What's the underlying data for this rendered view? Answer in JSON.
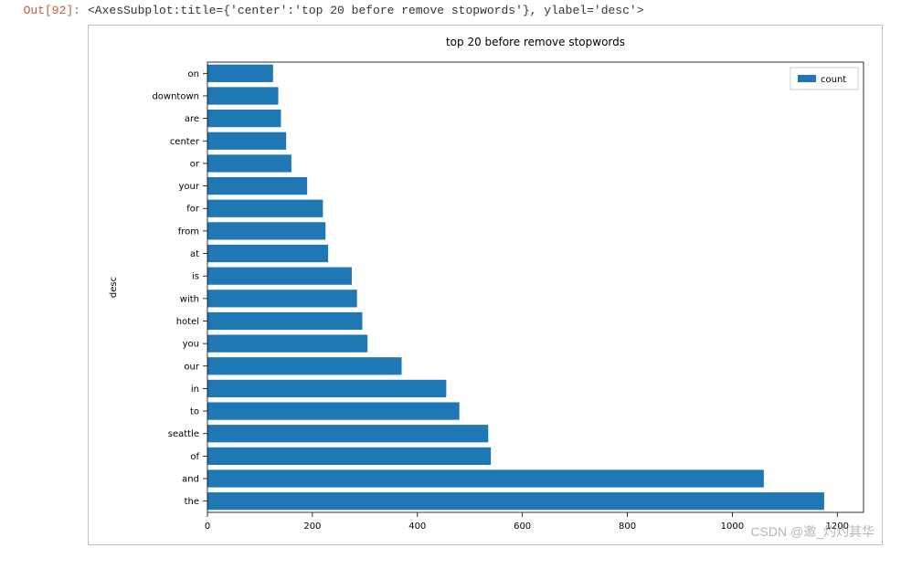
{
  "prompt": "Out[92]:",
  "output_text": "<AxesSubplot:title={'center':'top 20 before remove stopwords'}, ylabel='desc'>",
  "watermark": "CSDN @邀_灼灼其华",
  "chart": {
    "type": "barh",
    "title": "top 20 before remove stopwords",
    "ylabel": "desc",
    "xlim": [
      0,
      1250
    ],
    "xticks": [
      0,
      200,
      400,
      600,
      800,
      1000,
      1200
    ],
    "bar_color": "#1f77b4",
    "background_color": "#ffffff",
    "axis_color": "#000000",
    "tick_color": "#000000",
    "text_color": "#000000",
    "title_fontsize": 12,
    "ylabel_fontsize": 10,
    "tick_fontsize": 10,
    "legend": {
      "label": "count",
      "swatch_color": "#1f77b4",
      "border_color": "#cccccc",
      "text_color": "#000000",
      "fontsize": 10
    },
    "categories": [
      "on",
      "downtown",
      "are",
      "center",
      "or",
      "your",
      "for",
      "from",
      "at",
      "is",
      "with",
      "hotel",
      "you",
      "our",
      "in",
      "to",
      "seattle",
      "of",
      "and",
      "the"
    ],
    "values": [
      125,
      135,
      140,
      150,
      160,
      190,
      220,
      225,
      230,
      275,
      285,
      295,
      305,
      370,
      455,
      480,
      535,
      540,
      1060,
      1175
    ]
  }
}
